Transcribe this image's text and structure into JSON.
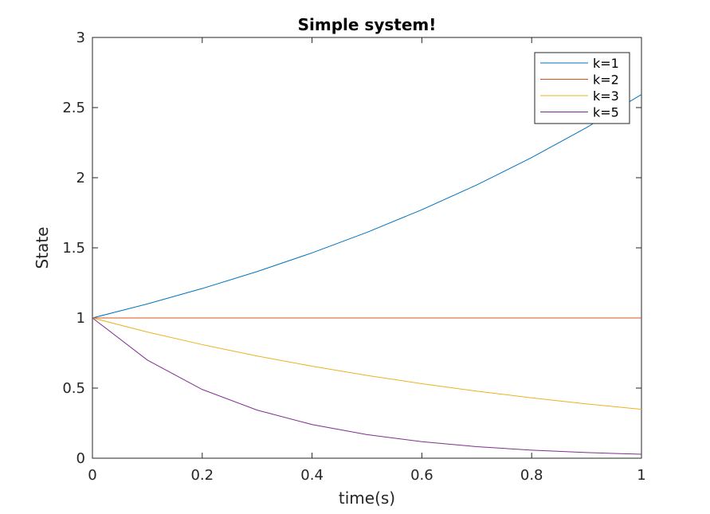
{
  "chart_data": {
    "type": "line",
    "title": "Simple system!",
    "xlabel": "time(s)",
    "ylabel": "State",
    "xlim": [
      0,
      1
    ],
    "ylim": [
      0,
      3
    ],
    "xticks": [
      0,
      0.2,
      0.4,
      0.6,
      0.8,
      1
    ],
    "xtick_labels": [
      "0",
      "0.2",
      "0.4",
      "0.6",
      "0.8",
      "1"
    ],
    "yticks": [
      0,
      0.5,
      1,
      1.5,
      2,
      2.5,
      3
    ],
    "ytick_labels": [
      "0",
      "0.5",
      "1",
      "1.5",
      "2",
      "2.5",
      "3"
    ],
    "grid": false,
    "legend_position": "top-right",
    "x": [
      0,
      0.1,
      0.2,
      0.3,
      0.4,
      0.5,
      0.6,
      0.7,
      0.8,
      0.9,
      1.0
    ],
    "series": [
      {
        "name": "k=1",
        "color": "#0072BD",
        "values": [
          1,
          1.1,
          1.21,
          1.331,
          1.4641,
          1.6105,
          1.7716,
          1.9487,
          2.1436,
          2.3579,
          2.5937
        ]
      },
      {
        "name": "k=2",
        "color": "#D95319",
        "values": [
          1,
          1,
          1,
          1,
          1,
          1,
          1,
          1,
          1,
          1,
          1
        ]
      },
      {
        "name": "k=3",
        "color": "#EDB120",
        "values": [
          1,
          0.9,
          0.81,
          0.729,
          0.6561,
          0.5905,
          0.5314,
          0.4783,
          0.4305,
          0.3874,
          0.3487
        ]
      },
      {
        "name": "k=5",
        "color": "#7E2F8E",
        "values": [
          1,
          0.7,
          0.49,
          0.343,
          0.2401,
          0.1681,
          0.1176,
          0.0824,
          0.0576,
          0.0404,
          0.0282
        ]
      }
    ]
  }
}
